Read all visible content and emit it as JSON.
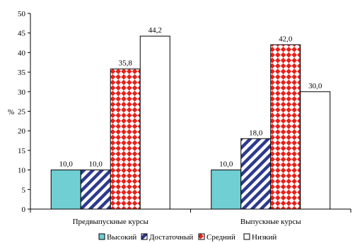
{
  "chart_data": {
    "type": "bar",
    "ylabel": "%",
    "ylim": [
      0,
      50
    ],
    "yticks": [
      0,
      5,
      10,
      15,
      20,
      25,
      30,
      35,
      40,
      45,
      50
    ],
    "grid": false,
    "legend_position": "bottom",
    "categories": [
      "Предвыпускные курсы",
      "Выпускные курсы"
    ],
    "series": [
      {
        "name": "Высокий",
        "values": [
          10.0,
          10.0
        ],
        "labels": [
          "10,0",
          "10,0"
        ],
        "color": "#6fcfd3",
        "pattern": "solid"
      },
      {
        "name": "Достаточный",
        "values": [
          10.0,
          18.0
        ],
        "labels": [
          "10,0",
          "18,0"
        ],
        "color": "#2e3a8c",
        "pattern": "diagonal-stripes"
      },
      {
        "name": "Средний",
        "values": [
          35.8,
          42.0
        ],
        "labels": [
          "35,8",
          "42,0"
        ],
        "color": "#e8201a",
        "pattern": "diamond-check"
      },
      {
        "name": "Низкий",
        "values": [
          44.2,
          30.0
        ],
        "labels": [
          "44,2",
          "30,0"
        ],
        "color": "#ffffff",
        "pattern": "solid"
      }
    ]
  }
}
